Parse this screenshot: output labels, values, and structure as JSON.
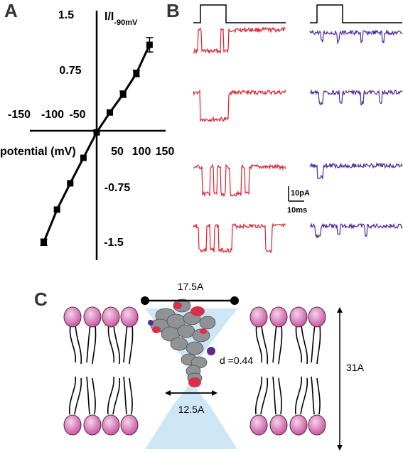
{
  "panels": {
    "a": "A",
    "b": "B",
    "c": "C"
  },
  "chart_data": {
    "type": "line",
    "title": "",
    "xlabel": "potential  (mV)",
    "ylabel_main": "I/I",
    "ylabel_sub": "-90mV",
    "x_ticks": [
      "-150",
      "-100",
      "-50",
      "50",
      "100",
      "150"
    ],
    "y_ticks": [
      "1.5",
      "0.75",
      "-0.75",
      "-1.5"
    ],
    "xlim": [
      -165,
      160
    ],
    "ylim": [
      -1.75,
      1.5
    ],
    "grid": false,
    "series": [
      {
        "x": [
          -120,
          -90,
          -60,
          -30,
          0,
          30,
          60,
          90,
          120
        ],
        "y": [
          -1.4,
          -0.99,
          -0.66,
          -0.34,
          -0.02,
          0.23,
          0.46,
          0.72,
          1.08
        ],
        "err": [
          0.04,
          0.03,
          0.03,
          0.03,
          0.02,
          0.03,
          0.04,
          0.04,
          0.09
        ]
      }
    ]
  },
  "traces": {
    "scale_current": "10pA",
    "scale_time": "10ms",
    "colors": {
      "left": "#e0202e",
      "right": "#4b2a9a"
    }
  },
  "diagram": {
    "top_width": "17.5A",
    "bottom_width": "12.5A",
    "height": "31A",
    "distance": "d =0.44",
    "colors": {
      "lipid": "#c8579f",
      "channel": "#cfe6f6",
      "molecule": "#8f9396",
      "oxygen": "#d9304a"
    }
  }
}
